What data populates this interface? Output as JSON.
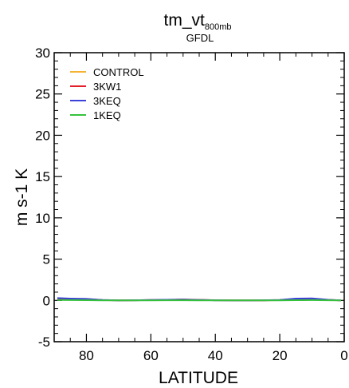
{
  "chart_data": {
    "type": "line",
    "title_main": "tm_vt",
    "title_subscript": "800mb",
    "subtitle": "GFDL",
    "xlabel": "LATITUDE",
    "ylabel": "m s-1 K",
    "xlim": [
      90,
      0
    ],
    "ylim": [
      -5,
      30
    ],
    "x_ticks": [
      80,
      60,
      40,
      20,
      0
    ],
    "y_ticks": [
      -5,
      0,
      5,
      10,
      15,
      20,
      25,
      30
    ],
    "grid": false,
    "legend_position": "top-left",
    "x": [
      89,
      85,
      80,
      75,
      70,
      65,
      60,
      55,
      50,
      45,
      40,
      35,
      30,
      25,
      20,
      15,
      10,
      5,
      1
    ],
    "series": [
      {
        "name": "CONTROL",
        "color": "#f5b335",
        "values": [
          0.25,
          0.2,
          0.18,
          0.05,
          0.0,
          0.02,
          0.05,
          0.08,
          0.12,
          0.08,
          0.03,
          0.02,
          0.0,
          0.02,
          0.05,
          0.2,
          0.22,
          0.08,
          0.0
        ]
      },
      {
        "name": "3KW1",
        "color": "#e2202a",
        "values": [
          0.2,
          0.18,
          0.15,
          0.04,
          0.0,
          0.02,
          0.04,
          0.06,
          0.1,
          0.06,
          0.02,
          0.01,
          0.0,
          0.01,
          0.04,
          0.15,
          0.18,
          0.06,
          0.0
        ]
      },
      {
        "name": "3KEQ",
        "color": "#3b42d8",
        "values": [
          0.28,
          0.22,
          0.18,
          0.05,
          0.0,
          0.02,
          0.05,
          0.08,
          0.1,
          0.06,
          0.02,
          0.01,
          0.0,
          0.02,
          0.06,
          0.22,
          0.25,
          0.08,
          0.0
        ]
      },
      {
        "name": "1KEQ",
        "color": "#36c23c",
        "values": [
          0.05,
          0.04,
          0.03,
          0.01,
          0.0,
          0.0,
          0.01,
          0.02,
          0.02,
          0.01,
          0.0,
          0.0,
          0.0,
          0.0,
          0.01,
          0.03,
          0.04,
          0.02,
          0.0
        ]
      }
    ]
  }
}
